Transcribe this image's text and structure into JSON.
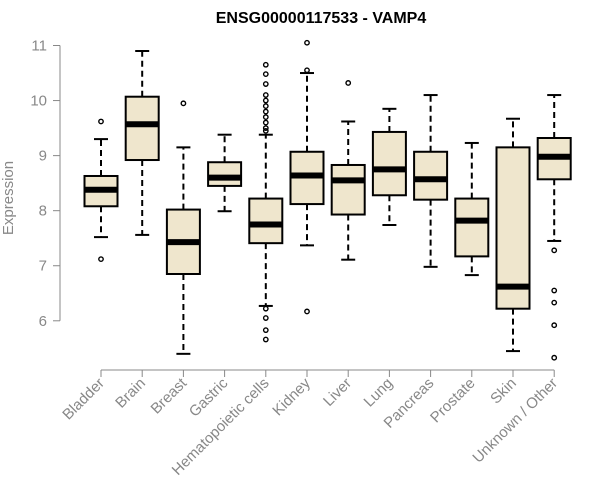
{
  "chart_data": {
    "type": "boxplot",
    "title": "ENSG00000117533 - VAMP4",
    "xlabel": "",
    "ylabel": "Expression",
    "ylim": [
      5.2,
      11.1
    ],
    "yticks": [
      6,
      7,
      8,
      9,
      10,
      11
    ],
    "grid": false,
    "colors": {
      "box_fill": "#efe6cd",
      "stroke": "#000000",
      "axis": "#888888"
    },
    "categories": [
      "Bladder",
      "Brain",
      "Breast",
      "Gastric",
      "Hematopoietic cells",
      "Kidney",
      "Liver",
      "Lung",
      "Pancreas",
      "Prostate",
      "Skin",
      "Unknown / Other"
    ],
    "series": [
      {
        "name": "Bladder",
        "whisker_low": 7.52,
        "q1": 8.08,
        "median": 8.38,
        "q3": 8.63,
        "whisker_high": 9.3,
        "outliers": [
          9.62,
          7.12
        ]
      },
      {
        "name": "Brain",
        "whisker_low": 7.56,
        "q1": 8.92,
        "median": 9.57,
        "q3": 10.07,
        "whisker_high": 10.9,
        "outliers": []
      },
      {
        "name": "Breast",
        "whisker_low": 5.4,
        "q1": 6.85,
        "median": 7.43,
        "q3": 8.02,
        "whisker_high": 9.15,
        "outliers": [
          9.95
        ]
      },
      {
        "name": "Gastric",
        "whisker_low": 7.99,
        "q1": 8.45,
        "median": 8.6,
        "q3": 8.88,
        "whisker_high": 9.38,
        "outliers": []
      },
      {
        "name": "Hematopoietic cells",
        "whisker_low": 6.27,
        "q1": 7.41,
        "median": 7.75,
        "q3": 8.22,
        "whisker_high": 9.38,
        "outliers": [
          10.65,
          10.48,
          10.3,
          10.1,
          10.0,
          9.9,
          9.8,
          9.7,
          9.6,
          9.5,
          9.45,
          6.22,
          6.05,
          5.83,
          5.66
        ]
      },
      {
        "name": "Kidney",
        "whisker_low": 7.37,
        "q1": 8.12,
        "median": 8.64,
        "q3": 9.07,
        "whisker_high": 10.5,
        "outliers": [
          11.05,
          10.55,
          6.17
        ]
      },
      {
        "name": "Liver",
        "whisker_low": 7.11,
        "q1": 7.93,
        "median": 8.55,
        "q3": 8.83,
        "whisker_high": 9.62,
        "outliers": [
          10.32
        ]
      },
      {
        "name": "Lung",
        "whisker_low": 7.74,
        "q1": 8.28,
        "median": 8.75,
        "q3": 9.43,
        "whisker_high": 9.85,
        "outliers": []
      },
      {
        "name": "Pancreas",
        "whisker_low": 6.98,
        "q1": 8.2,
        "median": 8.57,
        "q3": 9.07,
        "whisker_high": 10.1,
        "outliers": []
      },
      {
        "name": "Prostate",
        "whisker_low": 6.83,
        "q1": 7.17,
        "median": 7.82,
        "q3": 8.22,
        "whisker_high": 9.23,
        "outliers": []
      },
      {
        "name": "Skin",
        "whisker_low": 5.45,
        "q1": 6.22,
        "median": 6.62,
        "q3": 9.15,
        "whisker_high": 9.67,
        "outliers": []
      },
      {
        "name": "Unknown / Other",
        "whisker_low": 7.45,
        "q1": 8.57,
        "median": 8.98,
        "q3": 9.32,
        "whisker_high": 10.1,
        "outliers": [
          7.28,
          6.55,
          6.33,
          5.92,
          5.33
        ]
      }
    ]
  }
}
